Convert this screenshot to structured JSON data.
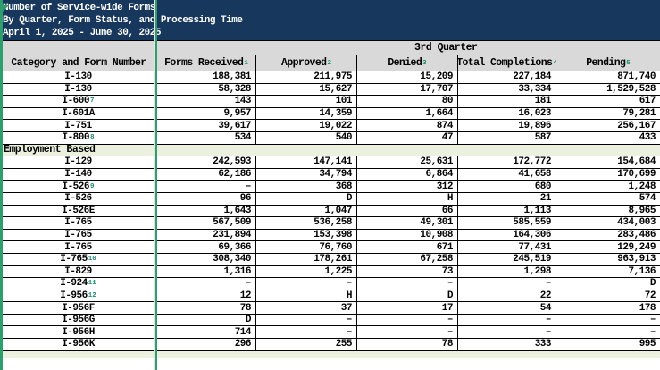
{
  "banner": {
    "line1": "Number of Service-wide Forms",
    "line2": "By Quarter, Form Status, and Processing Time",
    "line3": "April 1, 2025 - June 30, 2025"
  },
  "table": {
    "quarter_header": "3rd Quarter",
    "corner_header": "Category and Form Number",
    "columns": [
      {
        "label": "Forms Received",
        "sup": "1"
      },
      {
        "label": "Approved",
        "sup": "2"
      },
      {
        "label": "Denied",
        "sup": "3"
      },
      {
        "label": "Total Completions",
        "sup": "4"
      },
      {
        "label": "Pending",
        "sup": "5"
      }
    ],
    "rows": [
      {
        "form": "I-130",
        "cells": [
          "188,381",
          "211,975",
          "15,209",
          "227,184",
          "871,740"
        ]
      },
      {
        "form": "I-130",
        "cells": [
          "58,328",
          "15,627",
          "17,707",
          "33,334",
          "1,529,528"
        ]
      },
      {
        "form": "I-600",
        "sup": "7",
        "cells": [
          "143",
          "101",
          "80",
          "181",
          "617"
        ]
      },
      {
        "form": "I-601A",
        "cells": [
          "9,957",
          "14,359",
          "1,664",
          "16,023",
          "79,281"
        ]
      },
      {
        "form": "I-751",
        "cells": [
          "39,617",
          "19,022",
          "874",
          "19,896",
          "256,167"
        ]
      },
      {
        "form": "I-800",
        "sup": "8",
        "cells": [
          "534",
          "540",
          "47",
          "587",
          "433"
        ]
      },
      {
        "type": "section",
        "label": "Employment Based"
      },
      {
        "form": "I-129",
        "cells": [
          "242,593",
          "147,141",
          "25,631",
          "172,772",
          "154,684"
        ]
      },
      {
        "form": "I-140",
        "cells": [
          "62,186",
          "34,794",
          "6,864",
          "41,658",
          "170,699"
        ]
      },
      {
        "form": "I-526",
        "sup": "9",
        "cells": [
          "–",
          "368",
          "312",
          "680",
          "1,248"
        ]
      },
      {
        "form": "I-526",
        "cells": [
          "96",
          "D",
          "H",
          "21",
          "574"
        ]
      },
      {
        "form": "I-526E",
        "cells": [
          "1,643",
          "1,047",
          "66",
          "1,113",
          "8,965"
        ]
      },
      {
        "form": "I-765",
        "cells": [
          "567,509",
          "536,258",
          "49,301",
          "585,559",
          "434,003"
        ]
      },
      {
        "form": "I-765",
        "cells": [
          "231,894",
          "153,398",
          "10,908",
          "164,306",
          "283,486"
        ]
      },
      {
        "form": "I-765",
        "cells": [
          "69,366",
          "76,760",
          "671",
          "77,431",
          "129,249"
        ]
      },
      {
        "form": "I-765",
        "sup": "10",
        "cells": [
          "308,340",
          "178,261",
          "67,258",
          "245,519",
          "963,913"
        ]
      },
      {
        "form": "I-829",
        "cells": [
          "1,316",
          "1,225",
          "73",
          "1,298",
          "7,136"
        ]
      },
      {
        "form": "I-924",
        "sup": "11",
        "cells": [
          "–",
          "–",
          "–",
          "–",
          "D"
        ]
      },
      {
        "form": "I-956",
        "sup": "12",
        "cells": [
          "12",
          "H",
          "D",
          "22",
          "72"
        ]
      },
      {
        "form": "I-956F",
        "cells": [
          "78",
          "37",
          "17",
          "54",
          "178"
        ]
      },
      {
        "form": "I-956G",
        "cells": [
          "D",
          "–",
          "–",
          "–",
          "–"
        ]
      },
      {
        "form": "I-956H",
        "cells": [
          "714",
          "–",
          "–",
          "–",
          "–"
        ]
      },
      {
        "form": "I-956K",
        "cells": [
          "296",
          "255",
          "78",
          "333",
          "995"
        ]
      }
    ]
  },
  "colors": {
    "banner_navy": "#17375D",
    "header_gray": "#D9D9D9",
    "section_green": "#EBF1DE",
    "pane_divider_green": "#2E9E6E",
    "footnote_teal": "#1F8A70"
  }
}
